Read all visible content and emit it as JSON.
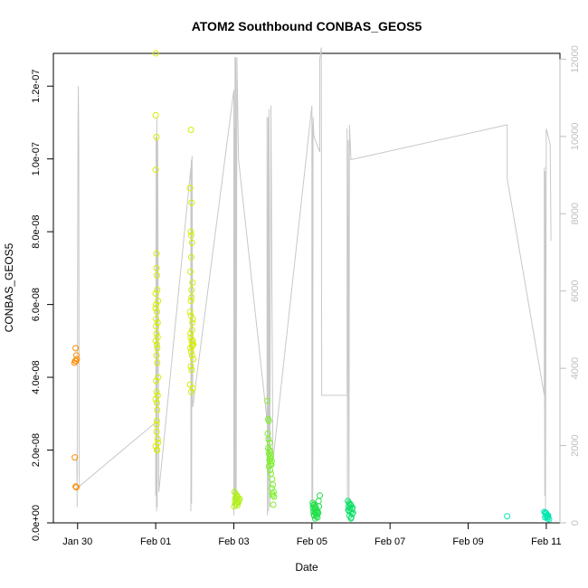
{
  "chart_data": {
    "type": "scatter",
    "title": "ATOM2 Southbound CONBAS_GEOS5",
    "xlabel": "Date",
    "ylabel": "CONBAS_GEOS5",
    "x_unit": "days since Jan 28 00:00",
    "xlim": [
      1.38,
      14.35
    ],
    "ylim": [
      0,
      1.29e-07
    ],
    "y2lim": [
      0,
      12150
    ],
    "x_ticks": [
      {
        "value": 2,
        "label": "Jan 30"
      },
      {
        "value": 4,
        "label": "Feb 01"
      },
      {
        "value": 6,
        "label": "Feb 03"
      },
      {
        "value": 8,
        "label": "Feb 05"
      },
      {
        "value": 10,
        "label": "Feb 07"
      },
      {
        "value": 12,
        "label": "Feb 09"
      },
      {
        "value": 14,
        "label": "Feb 11"
      }
    ],
    "y_ticks": [
      {
        "value": 0,
        "label": "0.0e+00"
      },
      {
        "value": 2e-08,
        "label": "2.0e-08"
      },
      {
        "value": 4e-08,
        "label": "4.0e-08"
      },
      {
        "value": 6e-08,
        "label": "6.0e-08"
      },
      {
        "value": 8e-08,
        "label": "8.0e-08"
      },
      {
        "value": 1e-07,
        "label": "1.0e-07"
      },
      {
        "value": 1.2e-07,
        "label": "1.2e-07"
      }
    ],
    "y2_ticks": [
      {
        "value": 0,
        "label": "0"
      },
      {
        "value": 2000,
        "label": "2000"
      },
      {
        "value": 4000,
        "label": "4000"
      },
      {
        "value": 6000,
        "label": "6000"
      },
      {
        "value": 8000,
        "label": "8000"
      },
      {
        "value": 10000,
        "label": "10000"
      },
      {
        "value": 12000,
        "label": "12000"
      }
    ],
    "grid": false,
    "series": [
      {
        "color": "#ff8c00",
        "points": [
          [
            1.92,
            4.4e-08
          ],
          [
            1.94,
            4.45e-08
          ],
          [
            1.96,
            4.45e-08
          ],
          [
            1.98,
            4.5e-08
          ],
          [
            1.95,
            4.8e-08
          ],
          [
            1.97,
            4.6e-08
          ],
          [
            1.93,
            1.8e-08
          ],
          [
            1.95,
            1e-08
          ],
          [
            1.97,
            9.8e-09
          ]
        ]
      },
      {
        "color": "#d7ee00",
        "points": [
          [
            4.0,
            1.29e-07
          ],
          [
            4.0,
            1.12e-07
          ],
          [
            4.02,
            1.06e-07
          ],
          [
            4.0,
            9.7e-08
          ],
          [
            4.01,
            6e-08
          ],
          [
            4.03,
            5.8e-08
          ],
          [
            4.05,
            5.5e-08
          ],
          [
            4.02,
            5.2e-08
          ],
          [
            4.0,
            5e-08
          ],
          [
            4.04,
            4.8e-08
          ],
          [
            4.06,
            4e-08
          ],
          [
            4.02,
            3.6e-08
          ],
          [
            4.0,
            3.4e-08
          ],
          [
            4.04,
            3.1e-08
          ],
          [
            4.03,
            2.8e-08
          ],
          [
            4.02,
            2.5e-08
          ],
          [
            4.05,
            2.3e-08
          ],
          [
            4.0,
            2.1e-08
          ],
          [
            4.03,
            2e-08
          ],
          [
            4.06,
            2.2e-08
          ],
          [
            4.02,
            7e-08
          ],
          [
            4.04,
            6.4e-08
          ],
          [
            4.01,
            5.4e-08
          ],
          [
            4.03,
            4.9e-08
          ],
          [
            4.05,
            3.5e-08
          ],
          [
            4.04,
            2e-08
          ],
          [
            4.0,
            5.9e-08
          ],
          [
            4.02,
            4.6e-08
          ],
          [
            4.03,
            3.3e-08
          ],
          [
            4.01,
            3.9e-08
          ],
          [
            4.0,
            6.3e-08
          ],
          [
            4.05,
            5.1e-08
          ],
          [
            4.04,
            4.4e-08
          ],
          [
            4.02,
            2.7e-08
          ],
          [
            4.03,
            6.8e-08
          ],
          [
            4.01,
            5.6e-08
          ],
          [
            4.02,
            7.4e-08
          ],
          [
            4.06,
            6.1e-08
          ]
        ]
      },
      {
        "color": "#d4ef00",
        "points": [
          [
            4.9,
            1.08e-07
          ],
          [
            4.88,
            9.2e-08
          ],
          [
            4.92,
            8.8e-08
          ],
          [
            4.9,
            8e-08
          ],
          [
            4.93,
            7.7e-08
          ],
          [
            4.91,
            7.3e-08
          ],
          [
            4.89,
            6.9e-08
          ],
          [
            4.94,
            6.6e-08
          ],
          [
            4.92,
            6.4e-08
          ],
          [
            4.9,
            6.1e-08
          ],
          [
            4.88,
            5.8e-08
          ],
          [
            4.95,
            5.6e-08
          ],
          [
            4.93,
            5.3e-08
          ],
          [
            4.9,
            5.1e-08
          ],
          [
            4.92,
            5e-08
          ],
          [
            4.94,
            4.9e-08
          ],
          [
            4.89,
            4.8e-08
          ],
          [
            4.91,
            4.7e-08
          ],
          [
            4.93,
            4.6e-08
          ],
          [
            4.96,
            4.5e-08
          ],
          [
            4.9,
            4.3e-08
          ],
          [
            4.92,
            4.2e-08
          ],
          [
            4.88,
            3.8e-08
          ],
          [
            4.95,
            3.7e-08
          ],
          [
            4.91,
            3.6e-08
          ],
          [
            4.94,
            5.5e-08
          ],
          [
            4.9,
            5.7e-08
          ],
          [
            4.92,
            6.2e-08
          ],
          [
            4.96,
            4.9e-08
          ],
          [
            4.89,
            5.2e-08
          ],
          [
            4.93,
            4.85e-08
          ],
          [
            4.91,
            7.9e-08
          ],
          [
            4.95,
            5e-08
          ]
        ]
      },
      {
        "color": "#b2f01e",
        "points": [
          [
            6.02,
            8.5e-09
          ],
          [
            6.05,
            8e-09
          ],
          [
            6.08,
            7.5e-09
          ],
          [
            6.1,
            7e-09
          ],
          [
            6.04,
            6.8e-09
          ],
          [
            6.06,
            6.5e-09
          ],
          [
            6.12,
            6.3e-09
          ],
          [
            6.03,
            6e-09
          ],
          [
            6.07,
            5.8e-09
          ],
          [
            6.11,
            5.5e-09
          ],
          [
            6.05,
            5e-09
          ],
          [
            6.09,
            4.8e-09
          ],
          [
            6.01,
            4.5e-09
          ],
          [
            6.13,
            6.2e-09
          ],
          [
            6.08,
            7.2e-09
          ],
          [
            6.04,
            5.2e-09
          ],
          [
            6.15,
            6.6e-09
          ],
          [
            6.1,
            5.7e-09
          ]
        ]
      },
      {
        "color": "#7cf02a",
        "points": [
          [
            6.86,
            3.35e-08
          ],
          [
            6.88,
            2.85e-08
          ],
          [
            6.9,
            2.8e-08
          ],
          [
            6.87,
            2.45e-08
          ],
          [
            6.89,
            2.3e-08
          ],
          [
            6.92,
            2.2e-08
          ],
          [
            6.88,
            2.05e-08
          ],
          [
            6.91,
            2e-08
          ],
          [
            6.93,
            1.95e-08
          ],
          [
            6.9,
            1.9e-08
          ],
          [
            6.95,
            1.85e-08
          ],
          [
            6.92,
            1.8e-08
          ],
          [
            6.94,
            1.75e-08
          ],
          [
            6.97,
            1.7e-08
          ],
          [
            6.96,
            1.6e-08
          ],
          [
            6.9,
            1.55e-08
          ],
          [
            6.93,
            1.45e-08
          ],
          [
            6.95,
            1.35e-08
          ],
          [
            6.98,
            1.2e-08
          ],
          [
            7.0,
            1.05e-08
          ],
          [
            6.97,
            9.5e-09
          ],
          [
            7.02,
            8.5e-09
          ],
          [
            6.99,
            8e-09
          ],
          [
            7.0,
            7.5e-09
          ],
          [
            7.03,
            7.2e-09
          ],
          [
            7.01,
            5e-09
          ],
          [
            6.94,
            1.62e-08
          ],
          [
            6.91,
            1.72e-08
          ]
        ]
      },
      {
        "color": "#22e04a",
        "points": [
          [
            8.02,
            5.5e-09
          ],
          [
            8.05,
            5e-09
          ],
          [
            8.08,
            4.5e-09
          ],
          [
            8.03,
            4e-09
          ],
          [
            8.07,
            3.8e-09
          ],
          [
            8.1,
            3.5e-09
          ],
          [
            8.04,
            3e-09
          ],
          [
            8.09,
            2.8e-09
          ],
          [
            8.12,
            2.5e-09
          ],
          [
            8.06,
            2e-09
          ],
          [
            8.11,
            1.8e-09
          ],
          [
            8.14,
            1.5e-09
          ],
          [
            8.08,
            1.2e-09
          ],
          [
            8.15,
            3e-09
          ],
          [
            8.18,
            4.5e-09
          ],
          [
            8.2,
            7.5e-09
          ],
          [
            8.17,
            6e-09
          ],
          [
            8.13,
            3.3e-09
          ],
          [
            8.05,
            2.2e-09
          ],
          [
            8.1,
            4.2e-09
          ],
          [
            8.16,
            2.7e-09
          ],
          [
            8.03,
            4.8e-09
          ]
        ]
      },
      {
        "color": "#10e06a",
        "points": [
          [
            8.92,
            6e-09
          ],
          [
            8.95,
            5.5e-09
          ],
          [
            8.98,
            5e-09
          ],
          [
            9.0,
            4.8e-09
          ],
          [
            8.94,
            4.5e-09
          ],
          [
            8.97,
            4e-09
          ],
          [
            9.02,
            3.8e-09
          ],
          [
            8.93,
            3.5e-09
          ],
          [
            8.99,
            3e-09
          ],
          [
            9.03,
            2.5e-09
          ],
          [
            8.96,
            2e-09
          ],
          [
            9.01,
            1.5e-09
          ],
          [
            9.04,
            4.2e-09
          ],
          [
            8.95,
            3.3e-09
          ],
          [
            9.05,
            2.8e-09
          ],
          [
            8.98,
            5.2e-09
          ],
          [
            9.0,
            1.2e-09
          ]
        ]
      },
      {
        "color": "#00e8b0",
        "points": [
          [
            13.0,
            1.8e-09
          ],
          [
            13.95,
            3e-09
          ],
          [
            13.98,
            2.8e-09
          ],
          [
            14.0,
            2.5e-09
          ],
          [
            14.02,
            2.2e-09
          ],
          [
            14.05,
            2e-09
          ],
          [
            13.97,
            1.5e-09
          ],
          [
            14.03,
            1.2e-09
          ],
          [
            14.07,
            1e-09
          ],
          [
            14.0,
            1.8e-09
          ],
          [
            13.99,
            2.7e-09
          ],
          [
            14.04,
            1.6e-09
          ]
        ]
      }
    ],
    "altitude_series": {
      "axis": "right",
      "color": "#c8c8c8",
      "points": [
        [
          1.98,
          1700
        ],
        [
          1.99,
          400
        ],
        [
          2.0,
          6400
        ],
        [
          2.01,
          10200
        ],
        [
          2.02,
          11300
        ],
        [
          2.03,
          9800
        ],
        [
          2.04,
          1200
        ],
        [
          2.05,
          950
        ],
        [
          4.0,
          2600
        ],
        [
          4.0,
          700
        ],
        [
          4.01,
          10000
        ],
        [
          4.02,
          300
        ],
        [
          4.03,
          10500
        ],
        [
          4.04,
          400
        ],
        [
          4.05,
          9900
        ],
        [
          4.08,
          800
        ],
        [
          4.9,
          9200
        ],
        [
          4.9,
          300
        ],
        [
          4.91,
          9400
        ],
        [
          4.92,
          500
        ],
        [
          4.93,
          9500
        ],
        [
          4.95,
          3000
        ],
        [
          6.0,
          11200
        ],
        [
          6.0,
          200
        ],
        [
          6.01,
          10200
        ],
        [
          6.02,
          400
        ],
        [
          6.03,
          12050
        ],
        [
          6.04,
          500
        ],
        [
          6.05,
          12050
        ],
        [
          6.06,
          500
        ],
        [
          6.08,
          12050
        ],
        [
          6.12,
          9400
        ],
        [
          6.85,
          2650
        ],
        [
          6.85,
          10500
        ],
        [
          6.86,
          200
        ],
        [
          6.88,
          10500
        ],
        [
          6.89,
          300
        ],
        [
          6.9,
          10700
        ],
        [
          6.92,
          400
        ],
        [
          6.95,
          10800
        ],
        [
          7.0,
          1600
        ],
        [
          8.0,
          10800
        ],
        [
          8.0,
          200
        ],
        [
          8.01,
          10300
        ],
        [
          8.02,
          250
        ],
        [
          8.03,
          10500
        ],
        [
          8.05,
          10000
        ],
        [
          8.2,
          9600
        ],
        [
          8.2,
          12000
        ],
        [
          8.24,
          12300
        ],
        [
          8.25,
          3300
        ],
        [
          8.9,
          3300
        ],
        [
          8.9,
          10200
        ],
        [
          8.91,
          400
        ],
        [
          8.93,
          9900
        ],
        [
          8.95,
          300
        ],
        [
          8.96,
          10300
        ],
        [
          9.0,
          9400
        ],
        [
          13.0,
          10300
        ],
        [
          13.0,
          8900
        ],
        [
          13.95,
          3300
        ],
        [
          13.95,
          9200
        ],
        [
          13.96,
          700
        ],
        [
          13.97,
          9100
        ],
        [
          13.98,
          300
        ],
        [
          14.0,
          10200
        ],
        [
          14.1,
          9800
        ],
        [
          14.12,
          7300
        ]
      ]
    }
  }
}
